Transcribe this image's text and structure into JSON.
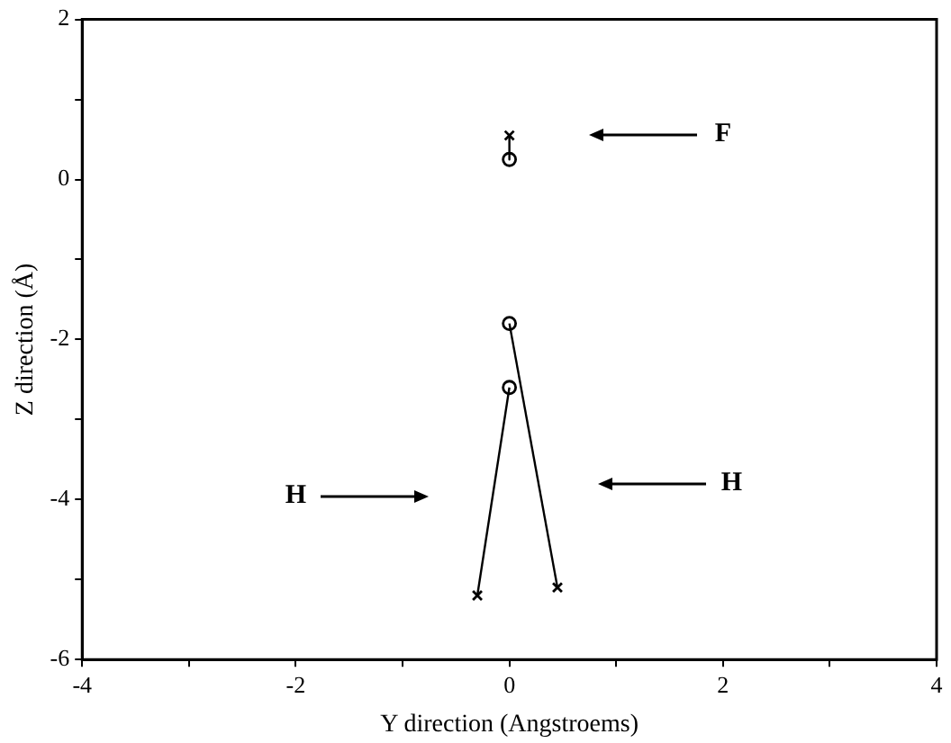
{
  "chart_data": {
    "type": "scatter",
    "xlabel": "Y direction (Angstroems)",
    "ylabel": "Z direction (Å)",
    "xlim": [
      -4,
      4
    ],
    "ylim": [
      -6,
      2
    ],
    "xticks": [
      -4,
      {
        "value": -3,
        "label": null
      },
      -2,
      {
        "value": -1,
        "label": null
      },
      0,
      {
        "value": 1,
        "label": null
      },
      2,
      {
        "value": 3,
        "label": null
      },
      4
    ],
    "yticks": [
      -6,
      {
        "value": -5,
        "label": null
      },
      -4,
      {
        "value": -3,
        "label": null
      },
      -2,
      {
        "value": -1,
        "label": null
      },
      0,
      {
        "value": 1,
        "label": null
      },
      2
    ],
    "grid": false,
    "legend": false,
    "series": [
      {
        "type": "line",
        "marker": "none",
        "color": "#000000",
        "x": [
          0,
          0
        ],
        "values": [
          0.55,
          0.25
        ]
      },
      {
        "type": "line",
        "marker": "none",
        "color": "#000000",
        "x": [
          0,
          0.45
        ],
        "values": [
          -1.8,
          -5.1
        ]
      },
      {
        "type": "line",
        "marker": "none",
        "color": "#000000",
        "x": [
          0,
          -0.3
        ],
        "values": [
          -2.6,
          -5.2
        ]
      },
      {
        "type": "scatter",
        "marker": "cross",
        "color": "#000000",
        "x": [
          0,
          -0.3,
          0.45
        ],
        "values": [
          0.55,
          -5.2,
          -5.1
        ]
      },
      {
        "type": "scatter",
        "marker": "circle",
        "color": "#000000",
        "x": [
          0,
          0,
          0
        ],
        "values": [
          0.25,
          -1.8,
          -2.6
        ]
      }
    ],
    "annotations": [
      "F",
      "H",
      "H"
    ]
  }
}
